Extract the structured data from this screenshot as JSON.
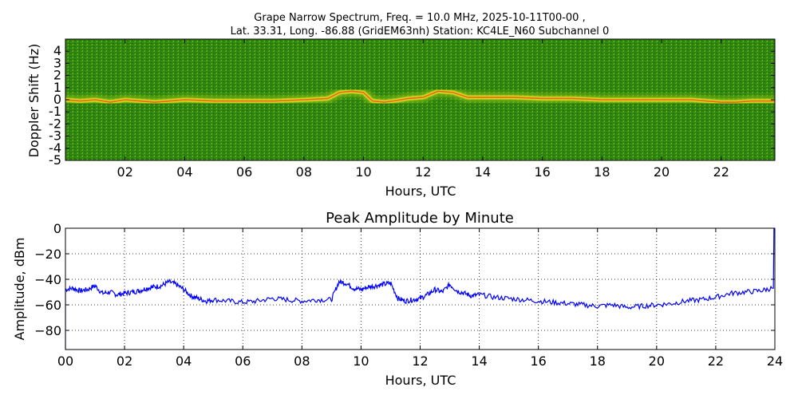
{
  "chart_data": [
    {
      "type": "heatmap",
      "title_line1": "Grape Narrow Spectrum, Freq. = 10.0 MHz, 2025-10-11T00-00 ,",
      "title_line2": "Lat.  33.31, Long. -86.88 (GridEM63nh) Station: KC4LE_N60 Subchannel 0",
      "xlabel": "Hours, UTC",
      "ylabel": "Doppler Shift (Hz)",
      "xlim": [
        0,
        23.8
      ],
      "ylim": [
        -5,
        5
      ],
      "x_ticks": [
        2,
        4,
        6,
        8,
        10,
        12,
        14,
        16,
        18,
        20,
        22
      ],
      "x_tick_labels": [
        "02",
        "04",
        "06",
        "08",
        "10",
        "12",
        "14",
        "16",
        "18",
        "20",
        "22"
      ],
      "y_ticks": [
        4,
        3,
        2,
        1,
        0,
        -1,
        -2,
        -3,
        -4,
        -5
      ],
      "y_tick_labels": [
        "4",
        "3",
        "2",
        "1",
        "0",
        "-1",
        "-2",
        "-3",
        "-4",
        "-5"
      ],
      "colors": {
        "background": "#2f8a12",
        "mid": "#8cc21a",
        "high": "#f2e21e",
        "peak": "#e8501a"
      },
      "carrier_trace": [
        [
          0.0,
          0.0
        ],
        [
          0.5,
          -0.1
        ],
        [
          1.0,
          0.0
        ],
        [
          1.5,
          -0.2
        ],
        [
          2.0,
          0.0
        ],
        [
          2.5,
          -0.1
        ],
        [
          3.0,
          -0.2
        ],
        [
          3.5,
          -0.1
        ],
        [
          4.0,
          0.0
        ],
        [
          5.0,
          -0.1
        ],
        [
          6.0,
          -0.1
        ],
        [
          7.0,
          -0.1
        ],
        [
          8.0,
          0.0
        ],
        [
          8.8,
          0.1
        ],
        [
          9.2,
          0.6
        ],
        [
          9.6,
          0.7
        ],
        [
          10.0,
          0.6
        ],
        [
          10.3,
          -0.1
        ],
        [
          10.7,
          -0.2
        ],
        [
          11.0,
          -0.1
        ],
        [
          11.5,
          0.1
        ],
        [
          12.0,
          0.2
        ],
        [
          12.5,
          0.7
        ],
        [
          13.0,
          0.6
        ],
        [
          13.5,
          0.2
        ],
        [
          14.0,
          0.2
        ],
        [
          15.0,
          0.2
        ],
        [
          16.0,
          0.1
        ],
        [
          17.0,
          0.1
        ],
        [
          18.0,
          0.0
        ],
        [
          19.0,
          0.0
        ],
        [
          20.0,
          0.0
        ],
        [
          21.0,
          0.0
        ],
        [
          21.5,
          -0.1
        ],
        [
          22.0,
          -0.2
        ],
        [
          22.5,
          -0.2
        ],
        [
          23.0,
          -0.1
        ],
        [
          23.8,
          -0.1
        ]
      ]
    },
    {
      "type": "line",
      "title": "Peak Amplitude by Minute",
      "xlabel": "Hours, UTC",
      "ylabel": "Amplitude, dBm",
      "xlim": [
        0,
        24
      ],
      "ylim": [
        -95,
        0
      ],
      "grid": true,
      "x_ticks": [
        0,
        2,
        4,
        6,
        8,
        10,
        12,
        14,
        16,
        18,
        20,
        22,
        24
      ],
      "x_tick_labels": [
        "00",
        "02",
        "04",
        "06",
        "08",
        "10",
        "12",
        "14",
        "16",
        "18",
        "20",
        "22",
        "24"
      ],
      "y_ticks": [
        0,
        -20,
        -40,
        -60,
        -80
      ],
      "y_tick_labels": [
        "0",
        "−20",
        "−40",
        "−60",
        "−80"
      ],
      "line_color": "#0000ff",
      "series": [
        {
          "x": [
            0.0,
            0.25,
            0.5,
            0.75,
            1.0,
            1.25,
            1.5,
            1.75,
            2.0,
            2.25,
            2.5,
            2.75,
            3.0,
            3.25,
            3.5,
            3.75,
            4.0,
            4.25,
            4.5,
            4.75,
            5.0,
            5.5,
            6.0,
            6.5,
            7.0,
            7.5,
            8.0,
            8.5,
            9.0,
            9.25,
            9.5,
            9.75,
            10.0,
            10.25,
            10.5,
            10.75,
            11.0,
            11.25,
            11.5,
            11.75,
            12.0,
            12.25,
            12.5,
            12.75,
            13.0,
            13.25,
            13.5,
            13.75,
            14.0,
            14.5,
            15.0,
            15.5,
            16.0,
            16.5,
            17.0,
            17.5,
            18.0,
            18.5,
            19.0,
            19.5,
            20.0,
            20.5,
            21.0,
            21.5,
            22.0,
            22.5,
            23.0,
            23.5,
            23.9
          ],
          "y": [
            -48,
            -47,
            -49,
            -48,
            -45,
            -51,
            -50,
            -52,
            -51,
            -50,
            -49,
            -47,
            -46,
            -45,
            -42,
            -44,
            -48,
            -53,
            -55,
            -57,
            -56,
            -57,
            -58,
            -57,
            -55,
            -56,
            -57,
            -56,
            -56,
            -42,
            -43,
            -47,
            -48,
            -46,
            -45,
            -44,
            -43,
            -55,
            -57,
            -56,
            -55,
            -52,
            -48,
            -50,
            -44,
            -49,
            -51,
            -53,
            -52,
            -54,
            -55,
            -56,
            -57,
            -58,
            -59,
            -60,
            -61,
            -60,
            -62,
            -61,
            -60,
            -59,
            -57,
            -56,
            -54,
            -51,
            -50,
            -49,
            -47
          ]
        }
      ]
    }
  ]
}
